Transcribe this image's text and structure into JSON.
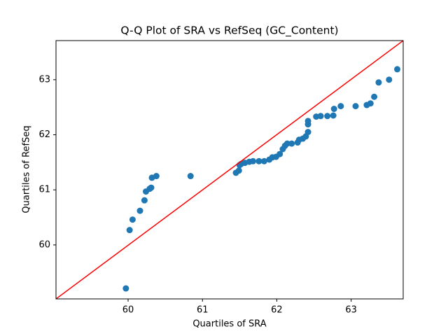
{
  "chart_data": {
    "type": "scatter",
    "title": "Q-Q Plot of SRA vs RefSeq (GC_Content)",
    "x_label": "Quartiles of SRA",
    "y_label": "Quartiles of RefSeq",
    "xlim": [
      59.03,
      63.7
    ],
    "ylim": [
      59.02,
      63.71
    ],
    "xticks": [
      60,
      61,
      62,
      63
    ],
    "yticks": [
      60,
      61,
      62,
      63
    ],
    "grid": false,
    "series": [
      {
        "color": "#1f77b4",
        "x": [
          59.97,
          60.02,
          60.06,
          60.16,
          60.22,
          60.24,
          60.29,
          60.31,
          60.32,
          60.38,
          60.84,
          61.45,
          61.49,
          61.5,
          61.52,
          61.57,
          61.63,
          61.68,
          61.76,
          61.83,
          61.9,
          61.94,
          61.99,
          62.04,
          62.08,
          62.11,
          62.14,
          62.2,
          62.28,
          62.3,
          62.35,
          62.39,
          62.42,
          62.42,
          62.42,
          62.53,
          62.59,
          62.68,
          62.76,
          62.77,
          62.86,
          63.06,
          63.21,
          63.26,
          63.31,
          63.37,
          63.51,
          63.62
        ],
        "values": [
          59.21,
          60.27,
          60.46,
          60.62,
          60.81,
          60.97,
          61.02,
          61.04,
          61.22,
          61.25,
          61.25,
          61.31,
          61.35,
          61.45,
          61.47,
          61.49,
          61.51,
          61.52,
          61.52,
          61.52,
          61.55,
          61.59,
          61.6,
          61.65,
          61.74,
          61.8,
          61.84,
          61.84,
          61.86,
          61.91,
          61.93,
          61.97,
          62.05,
          62.19,
          62.25,
          62.33,
          62.34,
          62.34,
          62.35,
          62.47,
          62.52,
          62.52,
          62.54,
          62.57,
          62.69,
          62.95,
          63.0,
          63.19
        ]
      }
    ],
    "reference_line": {
      "color": "#ff0000",
      "x": [
        59.03,
        63.7
      ],
      "values": [
        59.02,
        63.71
      ]
    }
  }
}
